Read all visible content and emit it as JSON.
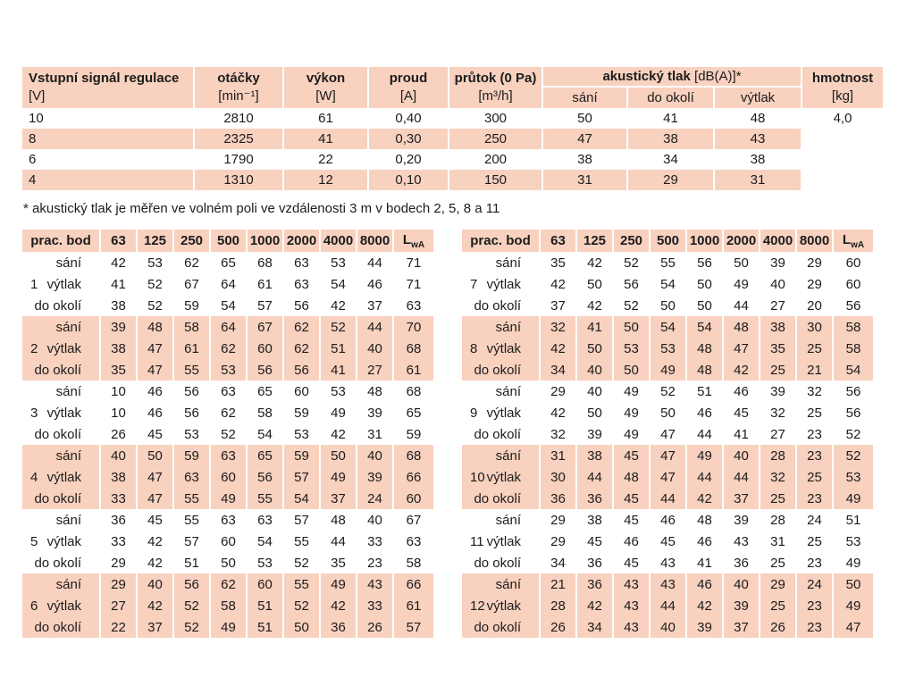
{
  "colors": {
    "peach": "#f8d1bf"
  },
  "spec_table": {
    "signal": {
      "title": "Vstupní signál regulace",
      "unit": "[V]"
    },
    "speed": {
      "title": "otáčky",
      "unit": "[min⁻¹]"
    },
    "power": {
      "title": "výkon",
      "unit": "[W]"
    },
    "current": {
      "title": "proud",
      "unit": "[A]"
    },
    "flow": {
      "title": "průtok (0 Pa)",
      "unit": "[m³/h]"
    },
    "acoustic": {
      "title": "akustický tlak",
      "suffix": "[dB(A)]*",
      "subcols": [
        "sání",
        "do okolí",
        "výtlak"
      ]
    },
    "weight": {
      "title": "hmotnost",
      "unit": "[kg]"
    },
    "rows": [
      [
        "10",
        "2810",
        "61",
        "0,40",
        "300",
        "50",
        "41",
        "48",
        "4,0"
      ],
      [
        "8",
        "2325",
        "41",
        "0,30",
        "250",
        "47",
        "38",
        "43",
        ""
      ],
      [
        "6",
        "1790",
        "22",
        "0,20",
        "200",
        "38",
        "34",
        "38",
        ""
      ],
      [
        "4",
        "1310",
        "12",
        "0,10",
        "150",
        "31",
        "29",
        "31",
        ""
      ]
    ]
  },
  "footnote": "* akustický tlak je měřen ve volném poli ve vzdálenosti 3 m v bodech 2, 5, 8 a 11",
  "acoustic_header": {
    "label": "prac. bod",
    "freqs": [
      "63",
      "125",
      "250",
      "500",
      "1000",
      "2000",
      "4000",
      "8000"
    ],
    "lwa": {
      "main": "L",
      "sub": "wA"
    }
  },
  "row_labels": [
    "sání",
    "výtlak",
    "do okolí"
  ],
  "acoustic_tables": [
    {
      "groups": [
        {
          "id": "1",
          "rows": [
            [
              42,
              53,
              62,
              65,
              68,
              63,
              53,
              44,
              71
            ],
            [
              41,
              52,
              67,
              64,
              61,
              63,
              54,
              46,
              71
            ],
            [
              38,
              52,
              59,
              54,
              57,
              56,
              42,
              37,
              63
            ]
          ]
        },
        {
          "id": "2",
          "rows": [
            [
              39,
              48,
              58,
              64,
              67,
              62,
              52,
              44,
              70
            ],
            [
              38,
              47,
              61,
              62,
              60,
              62,
              51,
              40,
              68
            ],
            [
              35,
              47,
              55,
              53,
              56,
              56,
              41,
              27,
              61
            ]
          ]
        },
        {
          "id": "3",
          "rows": [
            [
              10,
              46,
              56,
              63,
              65,
              60,
              53,
              48,
              68
            ],
            [
              10,
              46,
              56,
              62,
              58,
              59,
              49,
              39,
              65
            ],
            [
              26,
              45,
              53,
              52,
              54,
              53,
              42,
              31,
              59
            ]
          ]
        },
        {
          "id": "4",
          "rows": [
            [
              40,
              50,
              59,
              63,
              65,
              59,
              50,
              40,
              68
            ],
            [
              38,
              47,
              63,
              60,
              56,
              57,
              49,
              39,
              66
            ],
            [
              33,
              47,
              55,
              49,
              55,
              54,
              37,
              24,
              60
            ]
          ]
        },
        {
          "id": "5",
          "rows": [
            [
              36,
              45,
              55,
              63,
              63,
              57,
              48,
              40,
              67
            ],
            [
              33,
              42,
              57,
              60,
              54,
              55,
              44,
              33,
              63
            ],
            [
              29,
              42,
              51,
              50,
              53,
              52,
              35,
              23,
              58
            ]
          ]
        },
        {
          "id": "6",
          "rows": [
            [
              29,
              40,
              56,
              62,
              60,
              55,
              49,
              43,
              66
            ],
            [
              27,
              42,
              52,
              58,
              51,
              52,
              42,
              33,
              61
            ],
            [
              22,
              37,
              52,
              49,
              51,
              50,
              36,
              26,
              57
            ]
          ]
        }
      ]
    },
    {
      "groups": [
        {
          "id": "7",
          "rows": [
            [
              35,
              42,
              52,
              55,
              56,
              50,
              39,
              29,
              60
            ],
            [
              42,
              50,
              56,
              54,
              50,
              49,
              40,
              29,
              60
            ],
            [
              37,
              42,
              52,
              50,
              50,
              44,
              27,
              20,
              56
            ]
          ]
        },
        {
          "id": "8",
          "rows": [
            [
              32,
              41,
              50,
              54,
              54,
              48,
              38,
              30,
              58
            ],
            [
              42,
              50,
              53,
              53,
              48,
              47,
              35,
              25,
              58
            ],
            [
              34,
              40,
              50,
              49,
              48,
              42,
              25,
              21,
              54
            ]
          ]
        },
        {
          "id": "9",
          "rows": [
            [
              29,
              40,
              49,
              52,
              51,
              46,
              39,
              32,
              56
            ],
            [
              42,
              50,
              49,
              50,
              46,
              45,
              32,
              25,
              56
            ],
            [
              32,
              39,
              49,
              47,
              44,
              41,
              27,
              23,
              52
            ]
          ]
        },
        {
          "id": "10",
          "rows": [
            [
              31,
              38,
              45,
              47,
              49,
              40,
              28,
              23,
              52
            ],
            [
              30,
              44,
              48,
              47,
              44,
              44,
              32,
              25,
              53
            ],
            [
              36,
              36,
              45,
              44,
              42,
              37,
              25,
              23,
              49
            ]
          ]
        },
        {
          "id": "11",
          "rows": [
            [
              29,
              38,
              45,
              46,
              48,
              39,
              28,
              24,
              51
            ],
            [
              29,
              45,
              46,
              45,
              46,
              43,
              31,
              25,
              53
            ],
            [
              34,
              36,
              45,
              43,
              41,
              36,
              25,
              23,
              49
            ]
          ]
        },
        {
          "id": "12",
          "rows": [
            [
              21,
              36,
              43,
              43,
              46,
              40,
              29,
              24,
              50
            ],
            [
              28,
              42,
              43,
              44,
              42,
              39,
              25,
              23,
              49
            ],
            [
              26,
              34,
              43,
              40,
              39,
              37,
              26,
              23,
              47
            ]
          ]
        }
      ]
    }
  ]
}
